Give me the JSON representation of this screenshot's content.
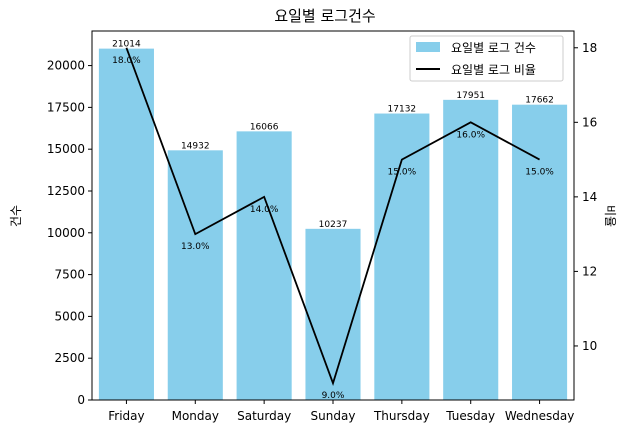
{
  "colors": {
    "bar": "#87CEEB",
    "line": "#000000"
  },
  "chart_data": {
    "type": "bar",
    "title": "요일별 로그건수",
    "ylabel": "건수",
    "y2label": "비율",
    "categories": [
      "Friday",
      "Monday",
      "Saturday",
      "Sunday",
      "Thursday",
      "Tuesday",
      "Wednesday"
    ],
    "series": [
      {
        "name": "요일별 로그 건수",
        "type": "bar",
        "axis": "left",
        "values": [
          21014,
          14932,
          16066,
          10237,
          17132,
          17951,
          17662
        ],
        "labels": [
          "21014",
          "14932",
          "16066",
          "10237",
          "17132",
          "17951",
          "17662"
        ]
      },
      {
        "name": "요일별 로그 비율",
        "type": "line",
        "axis": "right",
        "values": [
          18.0,
          13.0,
          14.0,
          9.0,
          15.0,
          16.0,
          15.0
        ],
        "labels": [
          "18.0%",
          "13.0%",
          "14.0%",
          "9.0%",
          "15.0%",
          "16.0%",
          "15.0%"
        ]
      }
    ],
    "ylim": [
      0,
      22068
    ],
    "y_ticks": [
      0,
      2500,
      5000,
      7500,
      10000,
      12500,
      15000,
      17500,
      20000
    ],
    "y2lim": [
      8.55,
      18.45
    ],
    "y2_ticks": [
      10,
      12,
      14,
      16,
      18
    ],
    "legend_position": "top-right",
    "grid": false
  }
}
